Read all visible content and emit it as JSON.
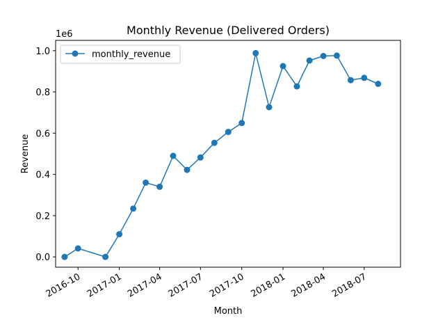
{
  "chart_data": {
    "type": "line",
    "title": "Monthly Revenue (Delivered Orders)",
    "xlabel": "Month",
    "ylabel": "Revenue",
    "y_scale_label": "1e6",
    "ylim": [
      -50000,
      1050000
    ],
    "xlim": [
      "2016-08-12",
      "2018-09-20"
    ],
    "y_ticks": [
      {
        "value": 0,
        "label": "0.0"
      },
      {
        "value": 200000,
        "label": "0.2"
      },
      {
        "value": 400000,
        "label": "0.4"
      },
      {
        "value": 600000,
        "label": "0.6"
      },
      {
        "value": 800000,
        "label": "0.8"
      },
      {
        "value": 1000000,
        "label": "1.0"
      }
    ],
    "x_ticks": [
      {
        "value": "2016-10-01",
        "label": "2016-10"
      },
      {
        "value": "2017-01-01",
        "label": "2017-01"
      },
      {
        "value": "2017-04-01",
        "label": "2017-04"
      },
      {
        "value": "2017-07-01",
        "label": "2017-07"
      },
      {
        "value": "2017-10-01",
        "label": "2017-10"
      },
      {
        "value": "2018-01-01",
        "label": "2018-01"
      },
      {
        "value": "2018-04-01",
        "label": "2018-04"
      },
      {
        "value": "2018-07-01",
        "label": "2018-07"
      }
    ],
    "legend_position": "top-left",
    "grid": false,
    "series": [
      {
        "name": "monthly_revenue",
        "color": "#1f77b4",
        "marker": "circle",
        "points": [
          {
            "x": "2016-09-01",
            "y": 0
          },
          {
            "x": "2016-10-01",
            "y": 41000
          },
          {
            "x": "2016-12-01",
            "y": 0
          },
          {
            "x": "2017-01-01",
            "y": 110000
          },
          {
            "x": "2017-02-01",
            "y": 234000
          },
          {
            "x": "2017-03-01",
            "y": 360000
          },
          {
            "x": "2017-04-01",
            "y": 340000
          },
          {
            "x": "2017-05-01",
            "y": 490000
          },
          {
            "x": "2017-06-01",
            "y": 422000
          },
          {
            "x": "2017-07-01",
            "y": 482000
          },
          {
            "x": "2017-08-01",
            "y": 553000
          },
          {
            "x": "2017-09-01",
            "y": 606000
          },
          {
            "x": "2017-10-01",
            "y": 649000
          },
          {
            "x": "2017-11-01",
            "y": 988000
          },
          {
            "x": "2017-12-01",
            "y": 726000
          },
          {
            "x": "2018-01-01",
            "y": 925000
          },
          {
            "x": "2018-02-01",
            "y": 827000
          },
          {
            "x": "2018-03-01",
            "y": 952000
          },
          {
            "x": "2018-04-01",
            "y": 974000
          },
          {
            "x": "2018-05-01",
            "y": 976000
          },
          {
            "x": "2018-06-01",
            "y": 857000
          },
          {
            "x": "2018-07-01",
            "y": 868000
          },
          {
            "x": "2018-08-01",
            "y": 839000
          }
        ]
      }
    ]
  }
}
